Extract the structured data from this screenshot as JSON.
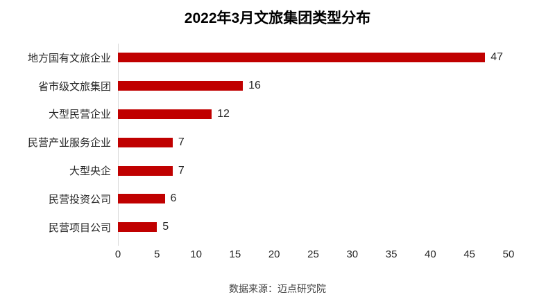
{
  "title": "2022年3月文旅集团类型分布",
  "source_note": "数据来源：迈点研究院",
  "chart_data": {
    "type": "bar",
    "orientation": "horizontal",
    "title": "2022年3月文旅集团类型分布",
    "categories": [
      "地方国有文旅企业",
      "省市级文旅集团",
      "大型民营企业",
      "民营产业服务企业",
      "大型央企",
      "民营投资公司",
      "民营项目公司"
    ],
    "values": [
      47,
      16,
      12,
      7,
      7,
      6,
      5
    ],
    "x_ticks": [
      0,
      5,
      10,
      15,
      20,
      25,
      30,
      35,
      40,
      45,
      50
    ],
    "xlim": [
      0,
      50
    ],
    "xlabel": "",
    "ylabel": "",
    "grid": "off",
    "legend": "none",
    "data_labels": "on",
    "bar_color": "#C00000",
    "axis_line_color": "#D9D9D9",
    "source": "数据来源：迈点研究院"
  }
}
